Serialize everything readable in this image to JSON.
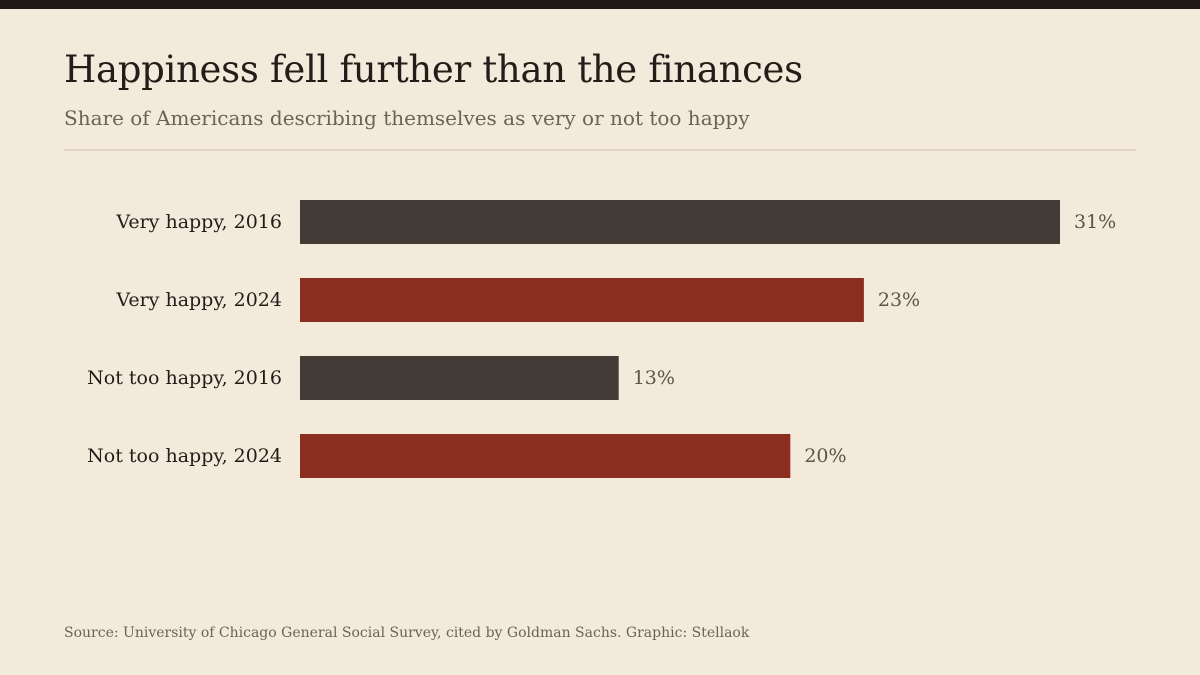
{
  "header": {
    "title": "Happiness fell further than the finances",
    "subtitle": "Share of Americans describing themselves as very or not too happy"
  },
  "footer": {
    "source": "Source: University of Chicago General Social Survey, cited by Goldman Sachs. Graphic: Stellaok"
  },
  "colors": {
    "year_2016": "#433c36",
    "year_2024": "#8b2e1f",
    "label_text": "#221d18",
    "value_text": "#5c544c"
  },
  "chart_data": {
    "type": "bar",
    "orientation": "horizontal",
    "title": "Happiness fell further than the finances",
    "subtitle": "Share of Americans describing themselves as very or not too happy",
    "categories": [
      "Very happy, 2016",
      "Very happy, 2024",
      "Not too happy, 2016",
      "Not too happy, 2024"
    ],
    "values": [
      31,
      23,
      13,
      20
    ],
    "value_labels": [
      "31%",
      "23%",
      "13%",
      "20%"
    ],
    "bar_color_keys": [
      "year_2016",
      "year_2024",
      "year_2016",
      "year_2024"
    ],
    "xlim": [
      0,
      31
    ],
    "unit": "%",
    "grid": false,
    "legend": "none"
  }
}
